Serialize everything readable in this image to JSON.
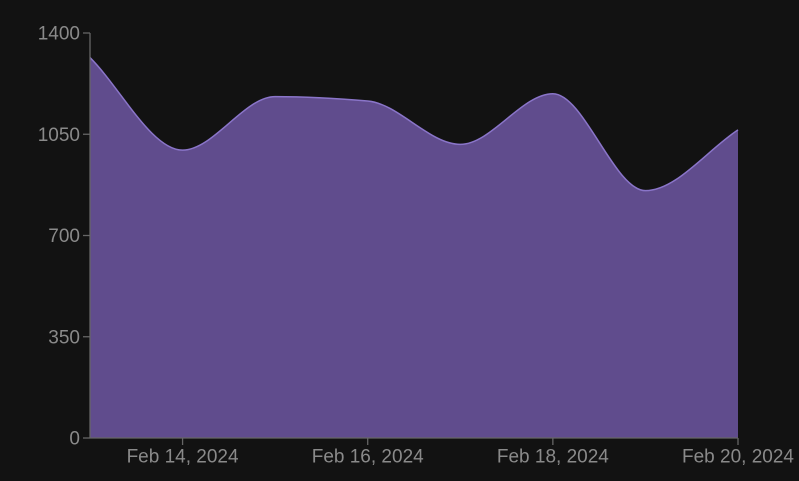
{
  "chart_data": {
    "type": "area",
    "title": "",
    "xlabel": "",
    "ylabel": "",
    "x": [
      "2024-02-13",
      "2024-02-14",
      "2024-02-15",
      "2024-02-16",
      "2024-02-17",
      "2024-02-18",
      "2024-02-19",
      "2024-02-20"
    ],
    "series": [
      {
        "values": [
          1315,
          995,
          1180,
          1165,
          1015,
          1190,
          855,
          1065
        ]
      }
    ],
    "ylim": [
      0,
      1400
    ],
    "y_ticks": [
      0,
      350,
      700,
      1050,
      1400
    ],
    "y_tick_labels": [
      "0",
      "350",
      "700",
      "1050",
      "1400"
    ],
    "x_ticks": [
      "2024-02-14",
      "2024-02-16",
      "2024-02-18",
      "2024-02-20"
    ],
    "x_tick_labels": [
      "Feb 14, 2024",
      "Feb 16, 2024",
      "Feb 18, 2024",
      "Feb 20, 2024"
    ],
    "grid": false,
    "legend": "none",
    "colors": {
      "background": "#121212",
      "area_fill": "#604c8d",
      "area_stroke": "#8a75c9",
      "axis": "#666666",
      "tick_text": "#8a8a8a"
    }
  }
}
